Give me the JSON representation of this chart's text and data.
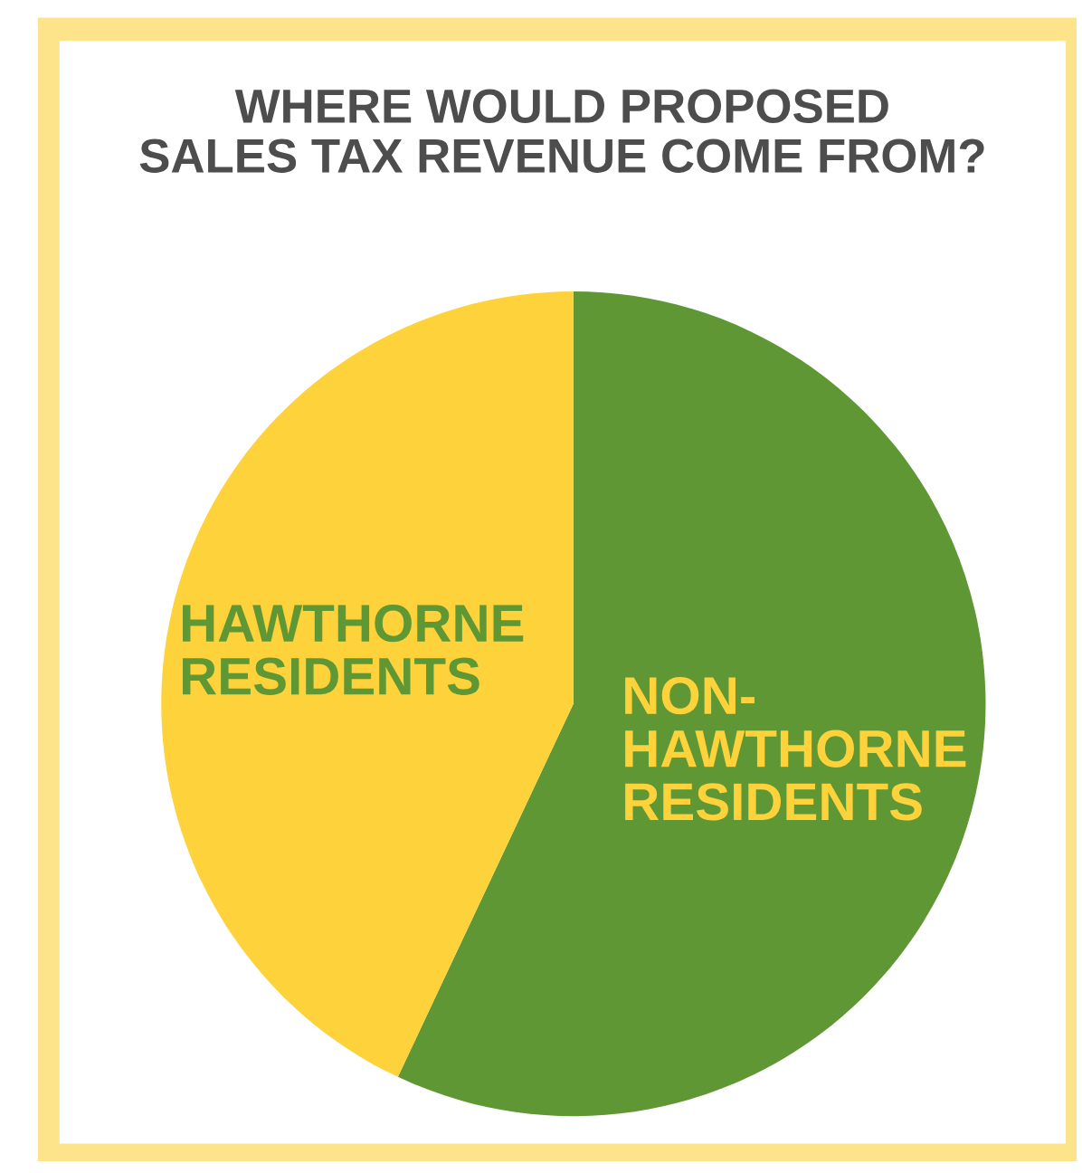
{
  "chart_data": {
    "type": "pie",
    "title": "WHERE WOULD PROPOSED\nSALES TAX REVENUE COME FROM?",
    "categories": [
      "NON-\nHAWTHORNE\nRESIDENTS",
      "HAWTHORNE\nRESIDENTS"
    ],
    "values": [
      57,
      43
    ],
    "colors": [
      "#5e9733",
      "#fdd23b"
    ]
  }
}
